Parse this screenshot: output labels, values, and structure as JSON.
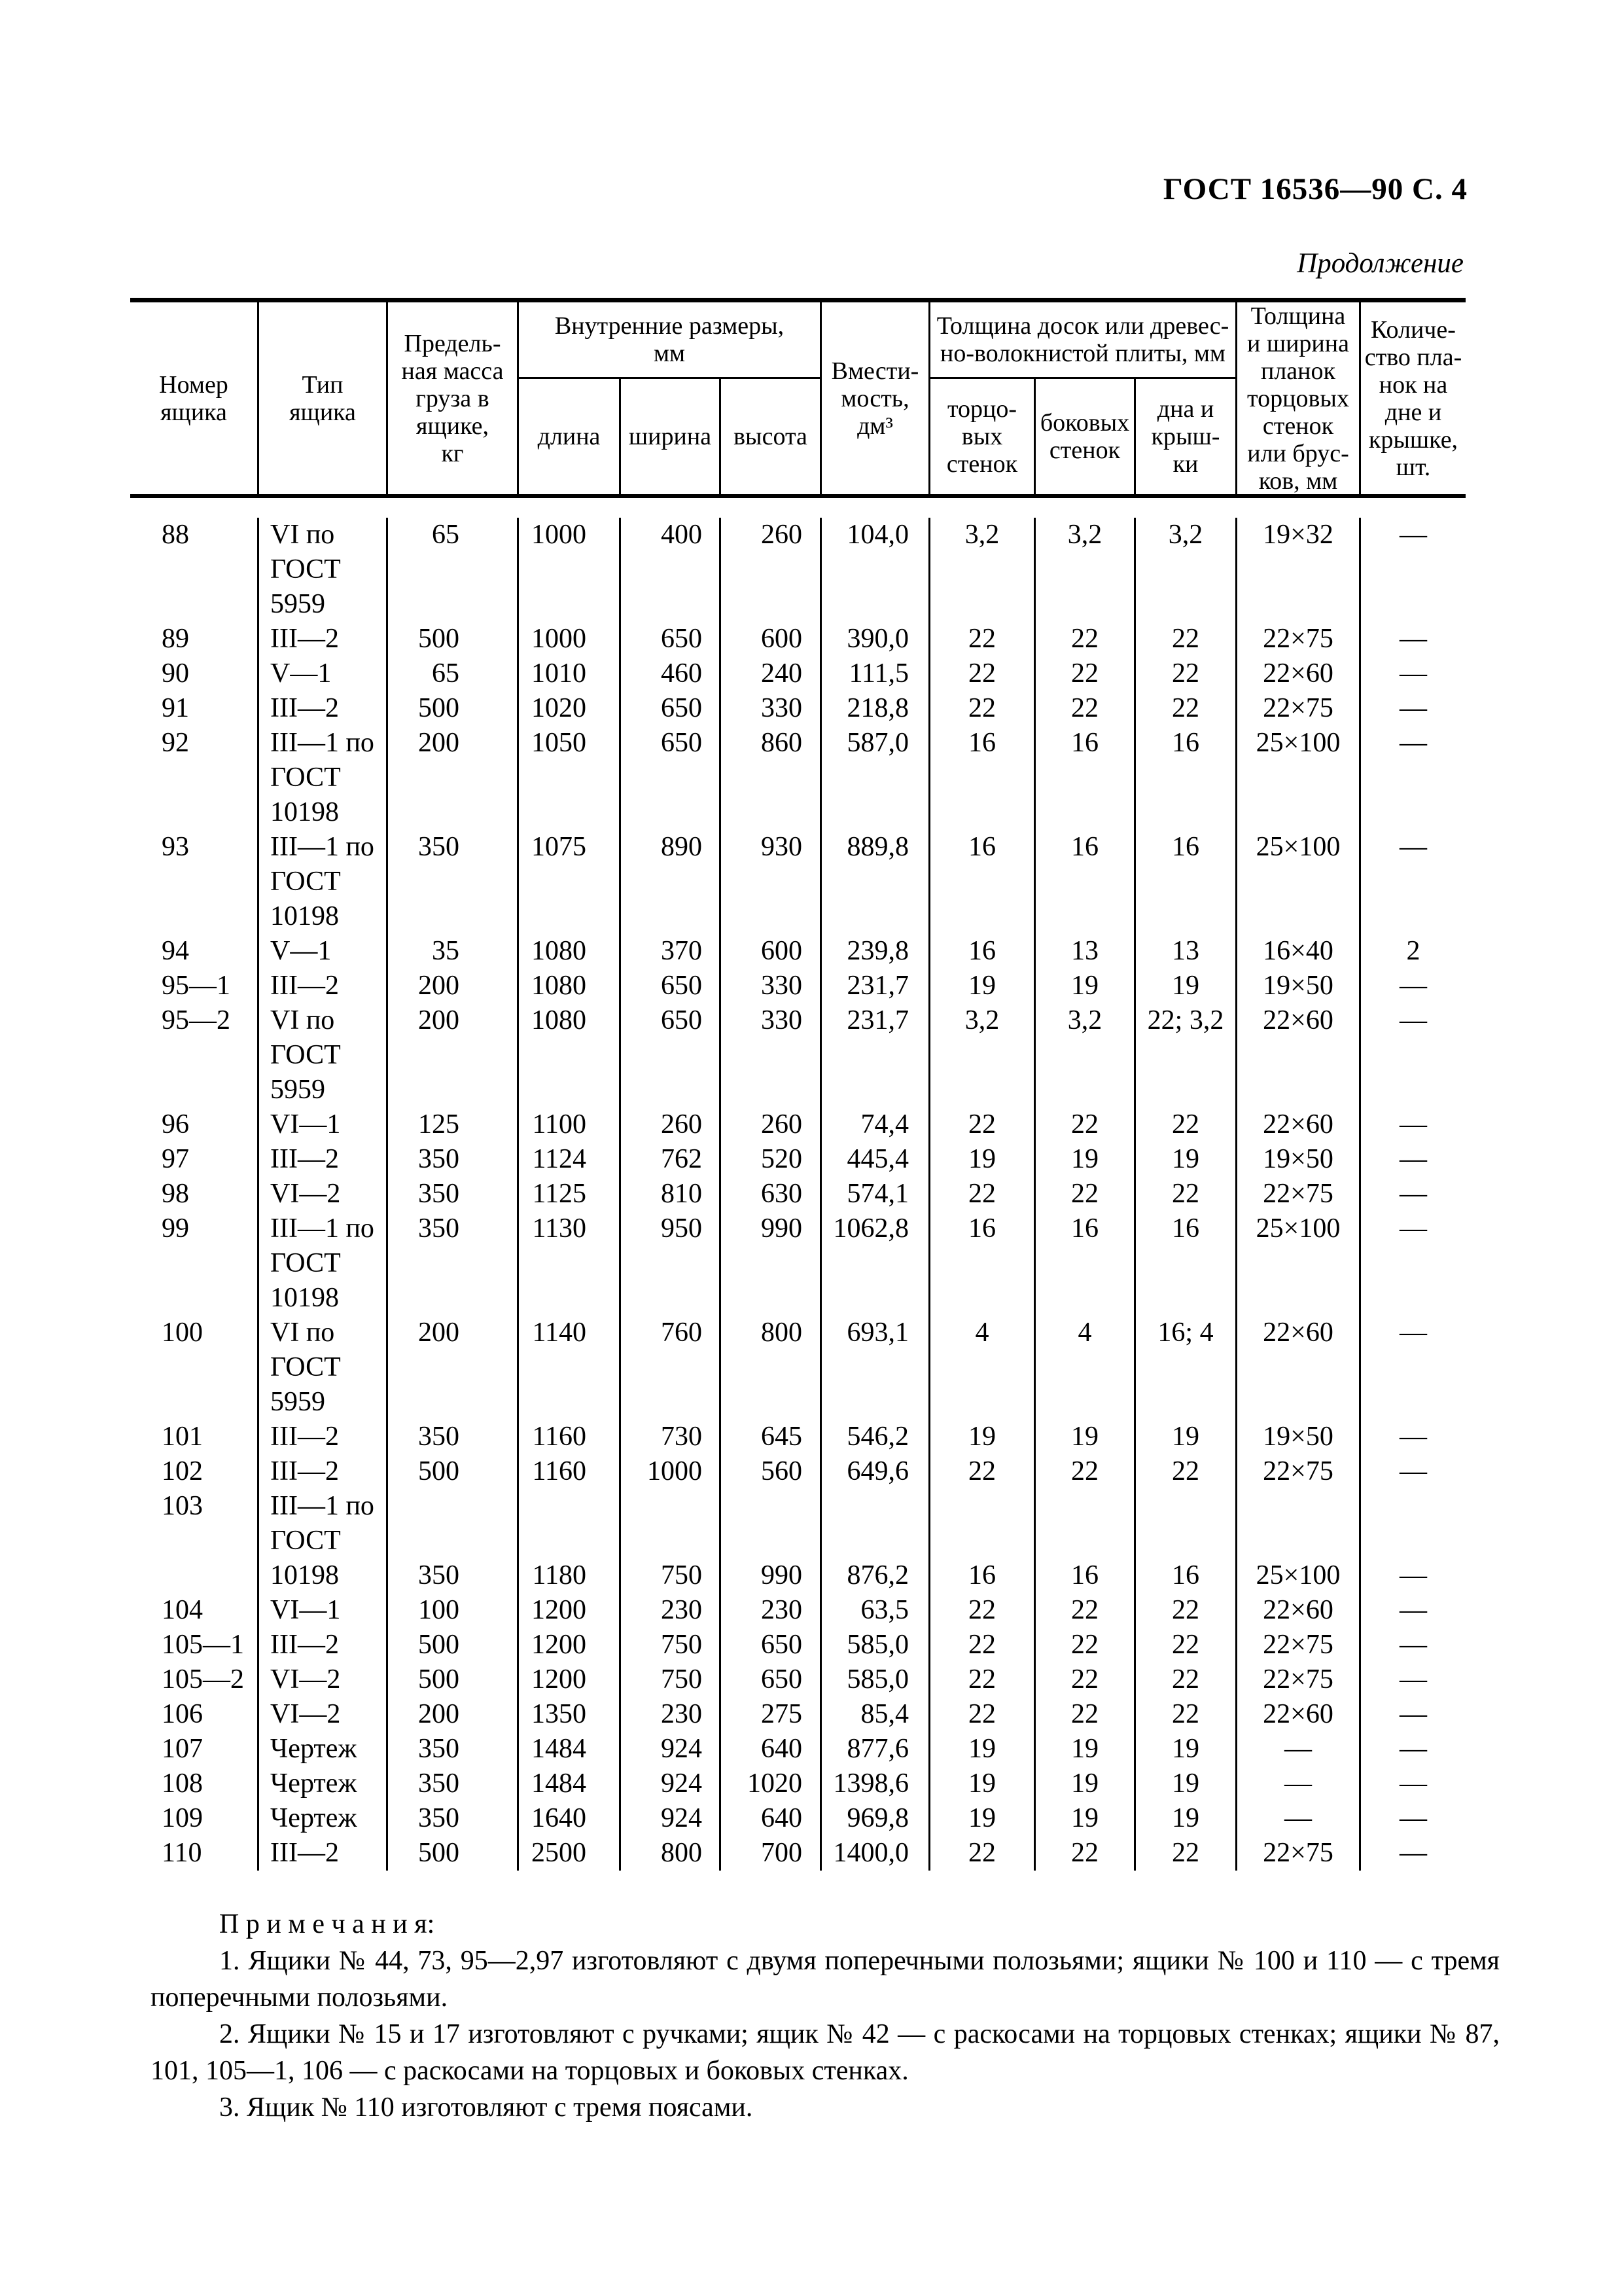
{
  "page": {
    "doc_ref": "ГОСТ 16536—90 С. 4",
    "continuation_label": "Продолжение"
  },
  "table": {
    "header": {
      "number": [
        "Номер",
        "ящика"
      ],
      "type": [
        "Тип",
        "ящика"
      ],
      "mass": [
        "Предель-",
        "ная масса",
        "груза в",
        "ящике,",
        "кг"
      ],
      "dims_group": [
        "Внутренние  размеры,",
        "мм"
      ],
      "length": "длина",
      "width": "ширина",
      "height": "высота",
      "capacity": [
        "Вмести-",
        "мость,",
        "дм³"
      ],
      "thickness_group": [
        "Толщина досок или древес-",
        "но-волокнистой плиты, мм"
      ],
      "end_walls": [
        "торцо-",
        "вых",
        "стенок"
      ],
      "side_walls": [
        "боковых",
        "стенок"
      ],
      "bottom_lid": [
        "дна и",
        "крыш-",
        "ки"
      ],
      "slats": [
        "Толщина",
        "и ширина",
        "планок",
        "торцовых",
        "стенок",
        "или брус-",
        "ков, мм"
      ],
      "slat_count": [
        "Количе-",
        "ство пла-",
        "нок на",
        "дне и",
        "крышке,",
        "шт."
      ]
    },
    "rows": [
      {
        "number": "88",
        "type_lines": [
          "VI по",
          "ГОСТ",
          "5959"
        ],
        "data_line": 0,
        "mass": "65",
        "length": "1000",
        "width": "400",
        "height": "260",
        "capacity": "104,0",
        "end_walls": "3,2",
        "side_walls": "3,2",
        "bottom_lid": "3,2",
        "slats": "19×32",
        "count": "—"
      },
      {
        "number": "89",
        "type_lines": [
          "III—2"
        ],
        "data_line": 0,
        "mass": "500",
        "length": "1000",
        "width": "650",
        "height": "600",
        "capacity": "390,0",
        "end_walls": "22",
        "side_walls": "22",
        "bottom_lid": "22",
        "slats": "22×75",
        "count": "—"
      },
      {
        "number": "90",
        "type_lines": [
          "V—1"
        ],
        "data_line": 0,
        "mass": "65",
        "length": "1010",
        "width": "460",
        "height": "240",
        "capacity": "111,5",
        "end_walls": "22",
        "side_walls": "22",
        "bottom_lid": "22",
        "slats": "22×60",
        "count": "—"
      },
      {
        "number": "91",
        "type_lines": [
          "III—2"
        ],
        "data_line": 0,
        "mass": "500",
        "length": "1020",
        "width": "650",
        "height": "330",
        "capacity": "218,8",
        "end_walls": "22",
        "side_walls": "22",
        "bottom_lid": "22",
        "slats": "22×75",
        "count": "—"
      },
      {
        "number": "92",
        "type_lines": [
          "III—1 по",
          "ГОСТ",
          "10198"
        ],
        "data_line": 0,
        "mass": "200",
        "length": "1050",
        "width": "650",
        "height": "860",
        "capacity": "587,0",
        "end_walls": "16",
        "side_walls": "16",
        "bottom_lid": "16",
        "slats": "25×100",
        "count": "—"
      },
      {
        "number": "93",
        "type_lines": [
          "III—1 по",
          "ГОСТ",
          "10198"
        ],
        "data_line": 0,
        "mass": "350",
        "length": "1075",
        "width": "890",
        "height": "930",
        "capacity": "889,8",
        "end_walls": "16",
        "side_walls": "16",
        "bottom_lid": "16",
        "slats": "25×100",
        "count": "—"
      },
      {
        "number": "94",
        "type_lines": [
          "V—1"
        ],
        "data_line": 0,
        "mass": "35",
        "length": "1080",
        "width": "370",
        "height": "600",
        "capacity": "239,8",
        "end_walls": "16",
        "side_walls": "13",
        "bottom_lid": "13",
        "slats": "16×40",
        "count": "2"
      },
      {
        "number": "95—1",
        "type_lines": [
          "III—2"
        ],
        "data_line": 0,
        "mass": "200",
        "length": "1080",
        "width": "650",
        "height": "330",
        "capacity": "231,7",
        "end_walls": "19",
        "side_walls": "19",
        "bottom_lid": "19",
        "slats": "19×50",
        "count": "—"
      },
      {
        "number": "95—2",
        "type_lines": [
          "VI по",
          "ГОСТ",
          "5959"
        ],
        "data_line": 0,
        "mass": "200",
        "length": "1080",
        "width": "650",
        "height": "330",
        "capacity": "231,7",
        "end_walls": "3,2",
        "side_walls": "3,2",
        "bottom_lid": "22; 3,2",
        "slats": "22×60",
        "count": "—"
      },
      {
        "number": "96",
        "type_lines": [
          "VI—1"
        ],
        "data_line": 0,
        "mass": "125",
        "length": "1100",
        "width": "260",
        "height": "260",
        "capacity": "74,4",
        "end_walls": "22",
        "side_walls": "22",
        "bottom_lid": "22",
        "slats": "22×60",
        "count": "—"
      },
      {
        "number": "97",
        "type_lines": [
          "III—2"
        ],
        "data_line": 0,
        "mass": "350",
        "length": "1124",
        "width": "762",
        "height": "520",
        "capacity": "445,4",
        "end_walls": "19",
        "side_walls": "19",
        "bottom_lid": "19",
        "slats": "19×50",
        "count": "—"
      },
      {
        "number": "98",
        "type_lines": [
          "VI—2"
        ],
        "data_line": 0,
        "mass": "350",
        "length": "1125",
        "width": "810",
        "height": "630",
        "capacity": "574,1",
        "end_walls": "22",
        "side_walls": "22",
        "bottom_lid": "22",
        "slats": "22×75",
        "count": "—"
      },
      {
        "number": "99",
        "type_lines": [
          "III—1 по",
          "ГОСТ",
          "10198"
        ],
        "data_line": 0,
        "mass": "350",
        "length": "1130",
        "width": "950",
        "height": "990",
        "capacity": "1062,8",
        "end_walls": "16",
        "side_walls": "16",
        "bottom_lid": "16",
        "slats": "25×100",
        "count": "—"
      },
      {
        "number": "100",
        "type_lines": [
          "VI по",
          "ГОСТ",
          "5959"
        ],
        "data_line": 0,
        "mass": "200",
        "length": "1140",
        "width": "760",
        "height": "800",
        "capacity": "693,1",
        "end_walls": "4",
        "side_walls": "4",
        "bottom_lid": "16; 4",
        "slats": "22×60",
        "count": "—"
      },
      {
        "number": "101",
        "type_lines": [
          "III—2"
        ],
        "data_line": 0,
        "mass": "350",
        "length": "1160",
        "width": "730",
        "height": "645",
        "capacity": "546,2",
        "end_walls": "19",
        "side_walls": "19",
        "bottom_lid": "19",
        "slats": "19×50",
        "count": "—"
      },
      {
        "number": "102",
        "type_lines": [
          "III—2"
        ],
        "data_line": 0,
        "mass": "500",
        "length": "1160",
        "width": "1000",
        "height": "560",
        "capacity": "649,6",
        "end_walls": "22",
        "side_walls": "22",
        "bottom_lid": "22",
        "slats": "22×75",
        "count": "—"
      },
      {
        "number": "103",
        "type_lines": [
          "III—1 по",
          "ГОСТ",
          "10198"
        ],
        "data_line": 2,
        "mass": "350",
        "length": "1180",
        "width": "750",
        "height": "990",
        "capacity": "876,2",
        "end_walls": "16",
        "side_walls": "16",
        "bottom_lid": "16",
        "slats": "25×100",
        "count": "—"
      },
      {
        "number": "104",
        "type_lines": [
          "VI—1"
        ],
        "data_line": 0,
        "mass": "100",
        "length": "1200",
        "width": "230",
        "height": "230",
        "capacity": "63,5",
        "end_walls": "22",
        "side_walls": "22",
        "bottom_lid": "22",
        "slats": "22×60",
        "count": "—"
      },
      {
        "number": "105—1",
        "type_lines": [
          "III—2"
        ],
        "data_line": 0,
        "mass": "500",
        "length": "1200",
        "width": "750",
        "height": "650",
        "capacity": "585,0",
        "end_walls": "22",
        "side_walls": "22",
        "bottom_lid": "22",
        "slats": "22×75",
        "count": "—"
      },
      {
        "number": "105—2",
        "type_lines": [
          "VI—2"
        ],
        "data_line": 0,
        "mass": "500",
        "length": "1200",
        "width": "750",
        "height": "650",
        "capacity": "585,0",
        "end_walls": "22",
        "side_walls": "22",
        "bottom_lid": "22",
        "slats": "22×75",
        "count": "—"
      },
      {
        "number": "106",
        "type_lines": [
          "VI—2"
        ],
        "data_line": 0,
        "mass": "200",
        "length": "1350",
        "width": "230",
        "height": "275",
        "capacity": "85,4",
        "end_walls": "22",
        "side_walls": "22",
        "bottom_lid": "22",
        "slats": "22×60",
        "count": "—"
      },
      {
        "number": "107",
        "type_lines": [
          "Чертеж"
        ],
        "data_line": 0,
        "mass": "350",
        "length": "1484",
        "width": "924",
        "height": "640",
        "capacity": "877,6",
        "end_walls": "19",
        "side_walls": "19",
        "bottom_lid": "19",
        "slats": "—",
        "count": "—"
      },
      {
        "number": "108",
        "type_lines": [
          "Чертеж"
        ],
        "data_line": 0,
        "mass": "350",
        "length": "1484",
        "width": "924",
        "height": "1020",
        "capacity": "1398,6",
        "end_walls": "19",
        "side_walls": "19",
        "bottom_lid": "19",
        "slats": "—",
        "count": "—"
      },
      {
        "number": "109",
        "type_lines": [
          "Чертеж"
        ],
        "data_line": 0,
        "mass": "350",
        "length": "1640",
        "width": "924",
        "height": "640",
        "capacity": "969,8",
        "end_walls": "19",
        "side_walls": "19",
        "bottom_lid": "19",
        "slats": "—",
        "count": "—"
      },
      {
        "number": "110",
        "type_lines": [
          "III—2"
        ],
        "data_line": 0,
        "mass": "500",
        "length": "2500",
        "width": "800",
        "height": "700",
        "capacity": "1400,0",
        "end_walls": "22",
        "side_walls": "22",
        "bottom_lid": "22",
        "slats": "22×75",
        "count": "—"
      }
    ]
  },
  "notes": {
    "title": "П р и м е ч а н и я:",
    "items": [
      "1. Ящики № 44, 73, 95—2,97 изготовляют с двумя поперечными полозьями; ящики № 100 и 110 — с тремя поперечными полозьями.",
      "2. Ящики  №  15  и  17  изготовляют  с  ручками;  ящик № 42 — с  раскосами на торцовых стенках; ящики № 87, 101, 105—1, 106 — с раскосами на торцовых и боковых стенках.",
      "3. Ящик № 110 изготовляют с тремя поясами."
    ]
  }
}
